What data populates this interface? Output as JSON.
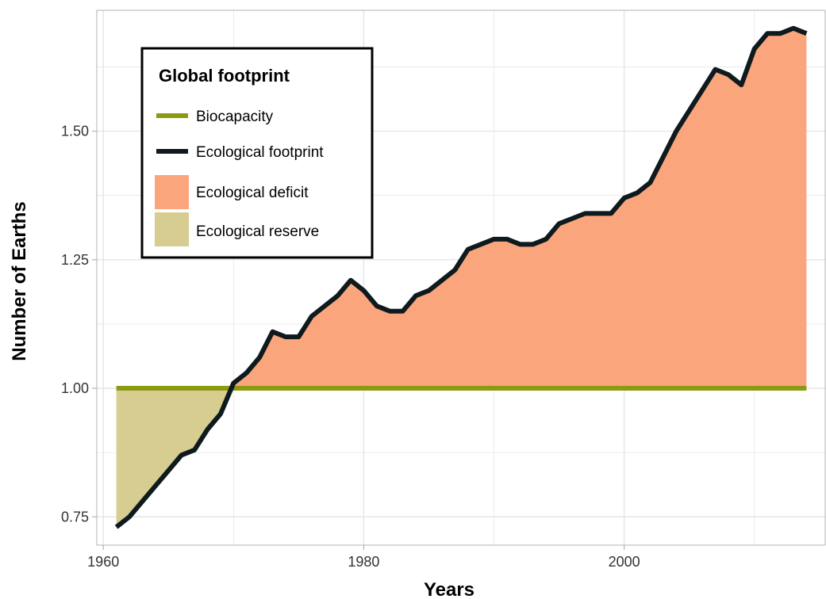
{
  "chart_data": {
    "type": "area",
    "title": "",
    "xlabel": "Years",
    "ylabel": "Number of Earths",
    "xlim": [
      1959.5,
      2015.5
    ],
    "ylim": [
      0.695,
      1.735
    ],
    "x_ticks": [
      1960,
      1980,
      2000
    ],
    "y_ticks": [
      0.75,
      1.0,
      1.25,
      1.5
    ],
    "x_tick_labels": [
      "1960",
      "1980",
      "2000"
    ],
    "y_tick_labels": [
      "0.75",
      "1.00",
      "1.25",
      "1.50"
    ],
    "grid": true,
    "legend": {
      "title": "Global footprint",
      "placement": "top-left",
      "entries": [
        "Biocapacity",
        "Ecological footprint",
        "Ecological deficit",
        "Ecological reserve"
      ]
    },
    "colors": {
      "biocapacity": "#8c9a12",
      "footprint": "#0f1a1e",
      "deficit": "#fba57d",
      "reserve": "#d8cd91",
      "grid": "#e3e3e3",
      "axis": "#b3b3b3"
    },
    "biocapacity": 1.0,
    "series": [
      {
        "name": "Ecological footprint",
        "x": [
          1961,
          1962,
          1963,
          1964,
          1965,
          1966,
          1967,
          1968,
          1969,
          1970,
          1971,
          1972,
          1973,
          1974,
          1975,
          1976,
          1977,
          1978,
          1979,
          1980,
          1981,
          1982,
          1983,
          1984,
          1985,
          1986,
          1987,
          1988,
          1989,
          1990,
          1991,
          1992,
          1993,
          1994,
          1995,
          1996,
          1997,
          1998,
          1999,
          2000,
          2001,
          2002,
          2003,
          2004,
          2005,
          2006,
          2007,
          2008,
          2009,
          2010,
          2011,
          2012,
          2013,
          2014
        ],
        "values": [
          0.73,
          0.75,
          0.78,
          0.81,
          0.84,
          0.87,
          0.88,
          0.92,
          0.95,
          1.01,
          1.03,
          1.06,
          1.11,
          1.1,
          1.1,
          1.14,
          1.16,
          1.18,
          1.21,
          1.19,
          1.16,
          1.15,
          1.15,
          1.18,
          1.19,
          1.21,
          1.23,
          1.27,
          1.28,
          1.29,
          1.29,
          1.28,
          1.28,
          1.29,
          1.32,
          1.33,
          1.34,
          1.34,
          1.34,
          1.37,
          1.38,
          1.4,
          1.45,
          1.5,
          1.54,
          1.58,
          1.62,
          1.61,
          1.59,
          1.66,
          1.69,
          1.69,
          1.7,
          1.69
        ]
      },
      {
        "name": "Biocapacity",
        "x": [
          1961,
          2014
        ],
        "values": [
          1.0,
          1.0
        ]
      }
    ]
  }
}
